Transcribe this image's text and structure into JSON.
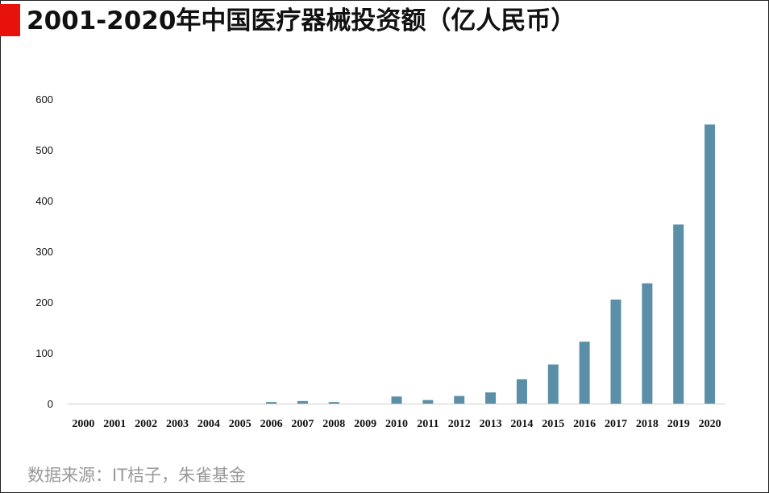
{
  "title": "2001-2020年中国医疗器械投资额（亿人民币）",
  "source": "数据来源：IT桔子，朱雀基金",
  "colors": {
    "accent": "#e8120c",
    "bar": "#5b8fa8",
    "axis": "#cccccc"
  },
  "chart_data": {
    "type": "bar",
    "title": "2001-2020年中国医疗器械投资额（亿人民币）",
    "xlabel": "",
    "ylabel": "",
    "categories": [
      "2000",
      "2001",
      "2002",
      "2003",
      "2004",
      "2005",
      "2006",
      "2007",
      "2008",
      "2009",
      "2010",
      "2011",
      "2012",
      "2013",
      "2014",
      "2015",
      "2016",
      "2017",
      "2018",
      "2019",
      "2020"
    ],
    "values": [
      0,
      0,
      0,
      0,
      0,
      0,
      3,
      5,
      3,
      0,
      14,
      7,
      15,
      22,
      48,
      77,
      122,
      205,
      237,
      353,
      550
    ],
    "ylim": [
      0,
      600
    ],
    "yticks": [
      0,
      100,
      200,
      300,
      400,
      500,
      600
    ],
    "grid": false,
    "legend": "none"
  }
}
